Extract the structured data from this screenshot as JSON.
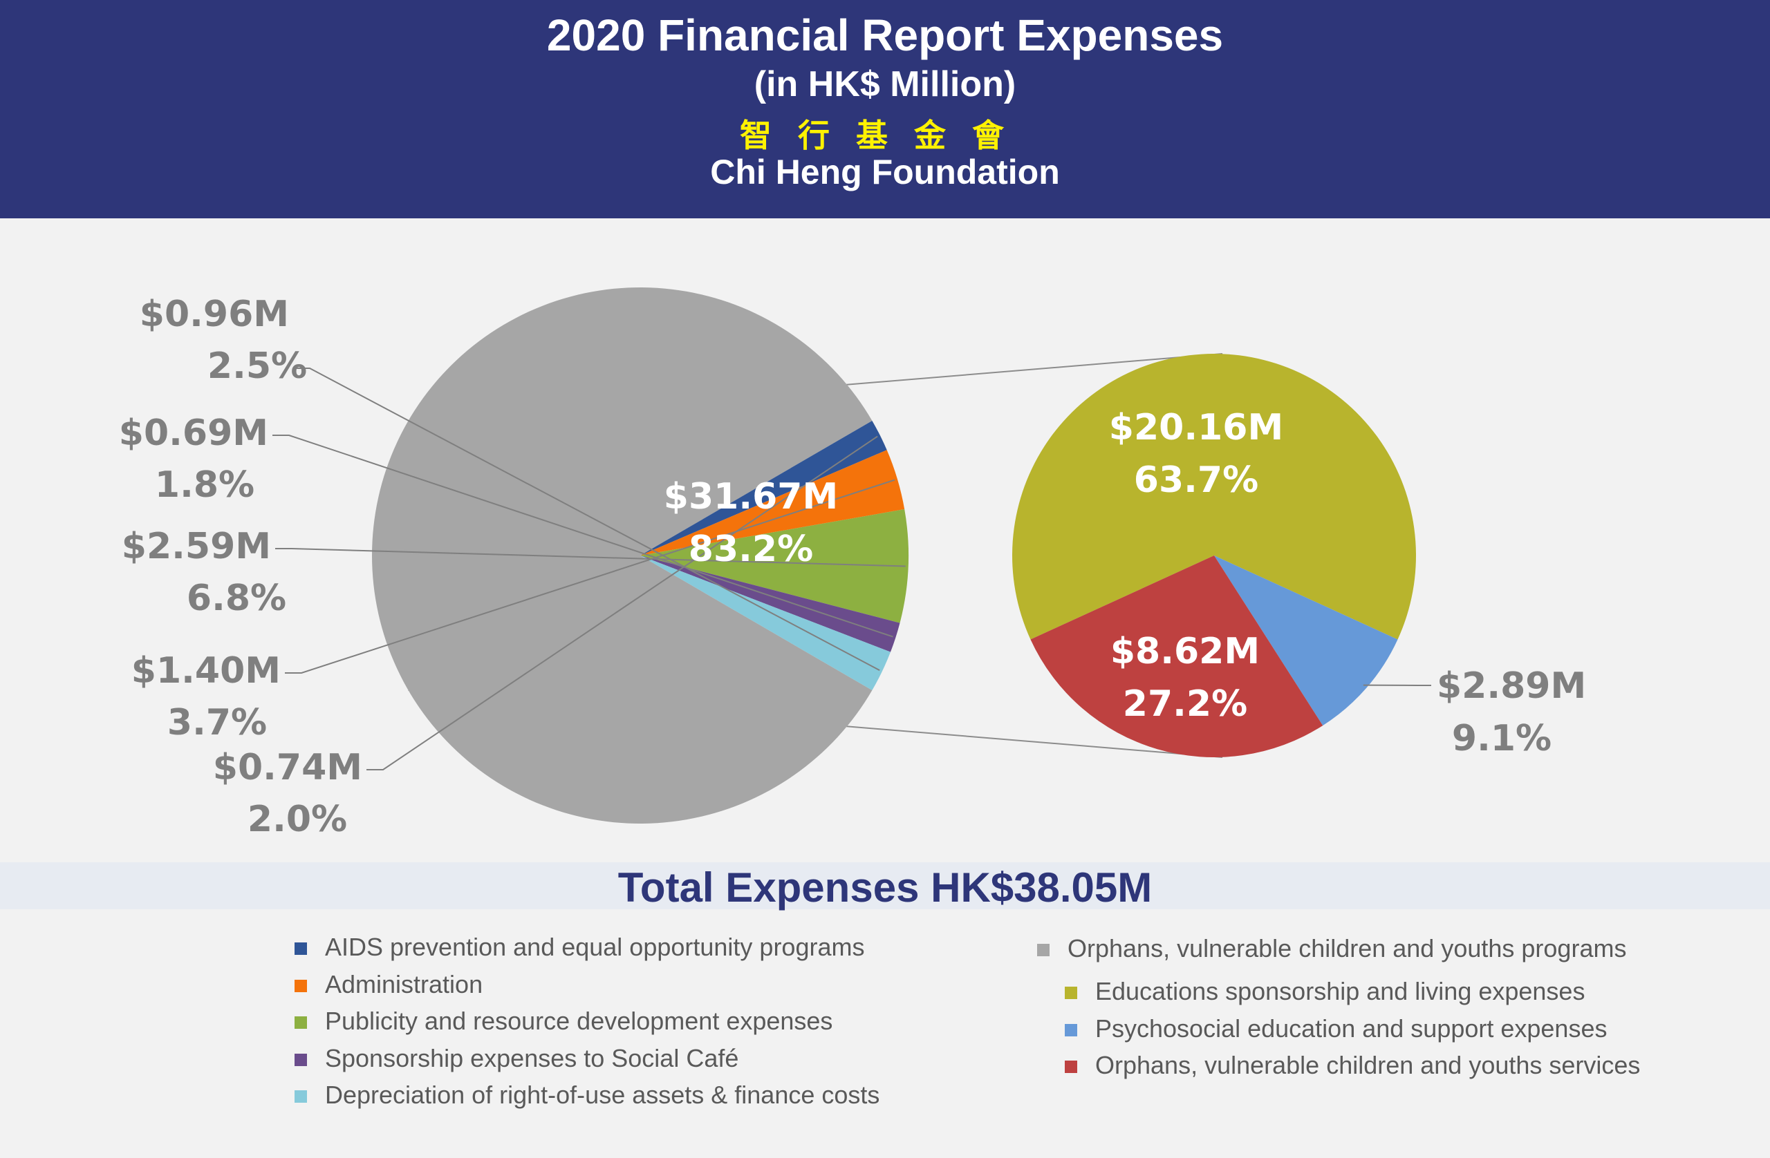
{
  "header": {
    "title": "2020  Financial Report Expenses",
    "subtitle": "(in HK$ Million)",
    "chinese_name": "智行基金會",
    "org_name": "Chi Heng Foundation"
  },
  "total": "Total Expenses HK$38.05M",
  "chart_data": [
    {
      "type": "pie",
      "title": "2020  Financial Report Expenses",
      "slices": [
        {
          "name": "Orphans, vulnerable children and youths programs",
          "value": 31.67,
          "percent": 83.2,
          "value_label": "$31.67M",
          "percent_label": "83.2%",
          "color": "#a6a6a6"
        },
        {
          "name": "AIDS prevention and equal opportunity programs",
          "value": 0.74,
          "percent": 2.0,
          "value_label": "$0.74M",
          "percent_label": "2.0%",
          "color": "#2f5597"
        },
        {
          "name": "Administration",
          "value": 1.4,
          "percent": 3.7,
          "value_label": "$1.40M",
          "percent_label": "3.7%",
          "color": "#f4730b"
        },
        {
          "name": "Publicity and resource development expenses",
          "value": 2.59,
          "percent": 6.8,
          "value_label": "$2.59M",
          "percent_label": "6.8%",
          "color": "#8db041"
        },
        {
          "name": "Sponsorship expenses to Social Café",
          "value": 0.69,
          "percent": 1.8,
          "value_label": "$0.69M",
          "percent_label": "1.8%",
          "color": "#6a4c8c"
        },
        {
          "name": "Depreciation of right-of-use assets & finance costs",
          "value": 0.96,
          "percent": 2.5,
          "value_label": "$0.96M",
          "percent_label": "2.5%",
          "color": "#86cadb"
        }
      ]
    },
    {
      "type": "pie",
      "title": "",
      "slices": [
        {
          "name": "Educations sponsorship and living expenses",
          "value": 20.16,
          "percent": 63.7,
          "value_label": "$20.16M",
          "percent_label": "63.7%",
          "color": "#b8b42d"
        },
        {
          "name": "Psychosocial education and support expenses",
          "value": 2.89,
          "percent": 9.1,
          "value_label": "$2.89M",
          "percent_label": "9.1%",
          "color": "#6699d8"
        },
        {
          "name": "Orphans, vulnerable children and youths services",
          "value": 8.62,
          "percent": 27.2,
          "value_label": "$8.62M",
          "percent_label": "27.2%",
          "color": "#be4140"
        }
      ]
    }
  ],
  "legend": {
    "left": [
      {
        "label": "AIDS prevention and equal opportunity programs",
        "color": "#2f5597"
      },
      {
        "label": "Administration",
        "color": "#f4730b"
      },
      {
        "label": "Publicity and resource development expenses",
        "color": "#8db041"
      },
      {
        "label": "Sponsorship expenses to Social Café",
        "color": "#6a4c8c"
      },
      {
        "label": "Depreciation of right-of-use assets & finance costs",
        "color": "#86cadb"
      }
    ],
    "right": [
      {
        "label": "Orphans, vulnerable children and youths programs",
        "color": "#a6a6a6"
      },
      {
        "label": "Educations sponsorship and living expenses",
        "color": "#b8b42d"
      },
      {
        "label": "Psychosocial education and support expenses",
        "color": "#6699d8"
      },
      {
        "label": "Orphans, vulnerable children and youths services",
        "color": "#be4140"
      }
    ]
  }
}
